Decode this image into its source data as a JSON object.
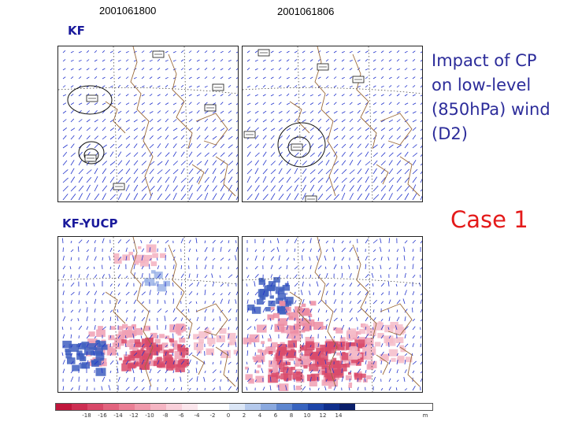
{
  "header": {
    "times": [
      "2001061800",
      "2001061806"
    ]
  },
  "rows": {
    "top_label": "KF",
    "bottom_label": "KF-YUCP"
  },
  "title_lines": [
    "Impact of CP",
    "on low-level",
    "(850hPa) wind",
    "(D2)"
  ],
  "case_label": "Case 1",
  "colorbar": {
    "colors": [
      "#c0163c",
      "#cd2e52",
      "#d84868",
      "#e2637e",
      "#ea7f95",
      "#f09aac",
      "#f5b5c3",
      "#f9d0da",
      "#fbe6ec",
      "#ffffff",
      "#ffffff",
      "#dbe6f6",
      "#b4c9ec",
      "#8aa9df",
      "#5e86cf",
      "#3864bf",
      "#1d45a8",
      "#0f2f8c",
      "#0a1f6a"
    ],
    "labels": [
      "-18",
      "-16",
      "-14",
      "-12",
      "-10",
      "-8",
      "-6",
      "-4",
      "-2",
      "0",
      "2",
      "4",
      "6",
      "8",
      "10",
      "12",
      "14"
    ],
    "unit": "m"
  },
  "station_icons": [
    "station-plot-icon"
  ]
}
